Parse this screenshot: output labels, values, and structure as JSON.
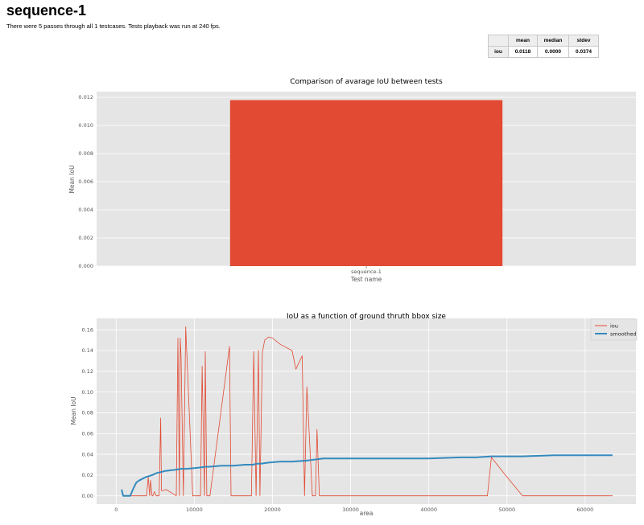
{
  "page": {
    "title": "sequence-1",
    "summary": "There were 5 passes through all 1 testcases. Tests playback was run at 240 fps."
  },
  "stats_table": {
    "columns": [
      "",
      "mean",
      "median",
      "stdev"
    ],
    "rows": [
      {
        "label": "iou",
        "mean": "0.0118",
        "median": "0.0000",
        "stdev": "0.0374"
      }
    ]
  },
  "colors": {
    "bar": "#e24a33",
    "iou_line": "#e24a33",
    "smoothed_line": "#348abd",
    "plot_bg": "#e5e5e5",
    "grid": "#ffffff"
  },
  "chart_data": [
    {
      "type": "bar",
      "title": "Comparison of avarage IoU between tests",
      "xlabel": "Test name",
      "ylabel": "Mean IoU",
      "categories": [
        "sequence-1"
      ],
      "values": [
        0.0118
      ],
      "ylim": [
        0,
        0.0124
      ],
      "yticks": [
        0.0,
        0.002,
        0.004,
        0.006,
        0.008,
        0.01,
        0.012
      ],
      "ytick_labels": [
        "0.000",
        "0.002",
        "0.004",
        "0.006",
        "0.008",
        "0.010",
        "0.012"
      ],
      "grid": true
    },
    {
      "type": "line",
      "title": "IoU as a function of ground thruth bbox size",
      "xlabel": "area",
      "ylabel": "Mean IoU",
      "xlim": [
        -2500,
        66500
      ],
      "ylim": [
        -0.008,
        0.171
      ],
      "xticks": [
        0,
        10000,
        20000,
        30000,
        40000,
        50000,
        60000
      ],
      "xtick_labels": [
        "0",
        "10000",
        "20000",
        "30000",
        "40000",
        "50000",
        "60000"
      ],
      "yticks": [
        0.0,
        0.02,
        0.04,
        0.06,
        0.08,
        0.1,
        0.12,
        0.14,
        0.16
      ],
      "ytick_labels": [
        "0.00",
        "0.02",
        "0.04",
        "0.06",
        "0.08",
        "0.10",
        "0.12",
        "0.14",
        "0.16"
      ],
      "legend_position": "top-right",
      "grid": true,
      "series": [
        {
          "name": "iou",
          "x": [
            700,
            900,
            1100,
            1500,
            1900,
            3900,
            4100,
            4300,
            4400,
            4600,
            4700,
            4900,
            5100,
            5500,
            5700,
            5800,
            6000,
            6400,
            7700,
            7900,
            8100,
            8200,
            8300,
            8600,
            8900,
            9800,
            10000,
            10200,
            10800,
            11000,
            11300,
            11400,
            11600,
            12000,
            14500,
            14700,
            16000,
            17300,
            17600,
            17900,
            18200,
            18400,
            18700,
            19000,
            19500,
            20000,
            21000,
            22500,
            23000,
            23300,
            23800,
            24100,
            24400,
            25100,
            25500,
            25700,
            26000,
            47500,
            48000,
            50000,
            52000,
            56000,
            63500
          ],
          "y": [
            0.005,
            0.0,
            0.0,
            0.0,
            0.0,
            0.0,
            0.018,
            0.0,
            0.015,
            0.0,
            0.0,
            0.004,
            0.0,
            0.0,
            0.075,
            0.005,
            0.005,
            0.006,
            0.0,
            0.152,
            0.0,
            0.152,
            0.135,
            0.0,
            0.163,
            0.0,
            0.0,
            0.0,
            0.0,
            0.125,
            0.0,
            0.139,
            0.0,
            0.0,
            0.144,
            0.0,
            0.0,
            0.0,
            0.139,
            0.0,
            0.14,
            0.0,
            0.138,
            0.15,
            0.153,
            0.152,
            0.146,
            0.14,
            0.122,
            0.127,
            0.135,
            0.0,
            0.105,
            0.0,
            0.0,
            0.064,
            0.0,
            0.0,
            0.037,
            0.018,
            0.0,
            0.0,
            0.0
          ]
        },
        {
          "name": "smoothed",
          "x": [
            700,
            900,
            1100,
            1500,
            1800,
            2200,
            2600,
            3000,
            3800,
            4200,
            4600,
            5200,
            5800,
            6300,
            7500,
            8300,
            9000,
            10500,
            11500,
            12000,
            13500,
            15000,
            16500,
            17500,
            18000,
            18500,
            19500,
            21000,
            22500,
            24500,
            25500,
            26500,
            30000,
            35000,
            40000,
            44000,
            46000,
            48000,
            52000,
            56000,
            60000,
            63500
          ],
          "y": [
            0.006,
            0.0,
            0.0,
            0.0,
            0.0,
            0.007,
            0.013,
            0.015,
            0.018,
            0.019,
            0.02,
            0.022,
            0.023,
            0.024,
            0.025,
            0.026,
            0.026,
            0.027,
            0.028,
            0.028,
            0.029,
            0.029,
            0.03,
            0.03,
            0.031,
            0.031,
            0.032,
            0.033,
            0.033,
            0.034,
            0.035,
            0.036,
            0.036,
            0.036,
            0.036,
            0.037,
            0.037,
            0.038,
            0.038,
            0.039,
            0.039,
            0.039
          ]
        }
      ]
    }
  ]
}
